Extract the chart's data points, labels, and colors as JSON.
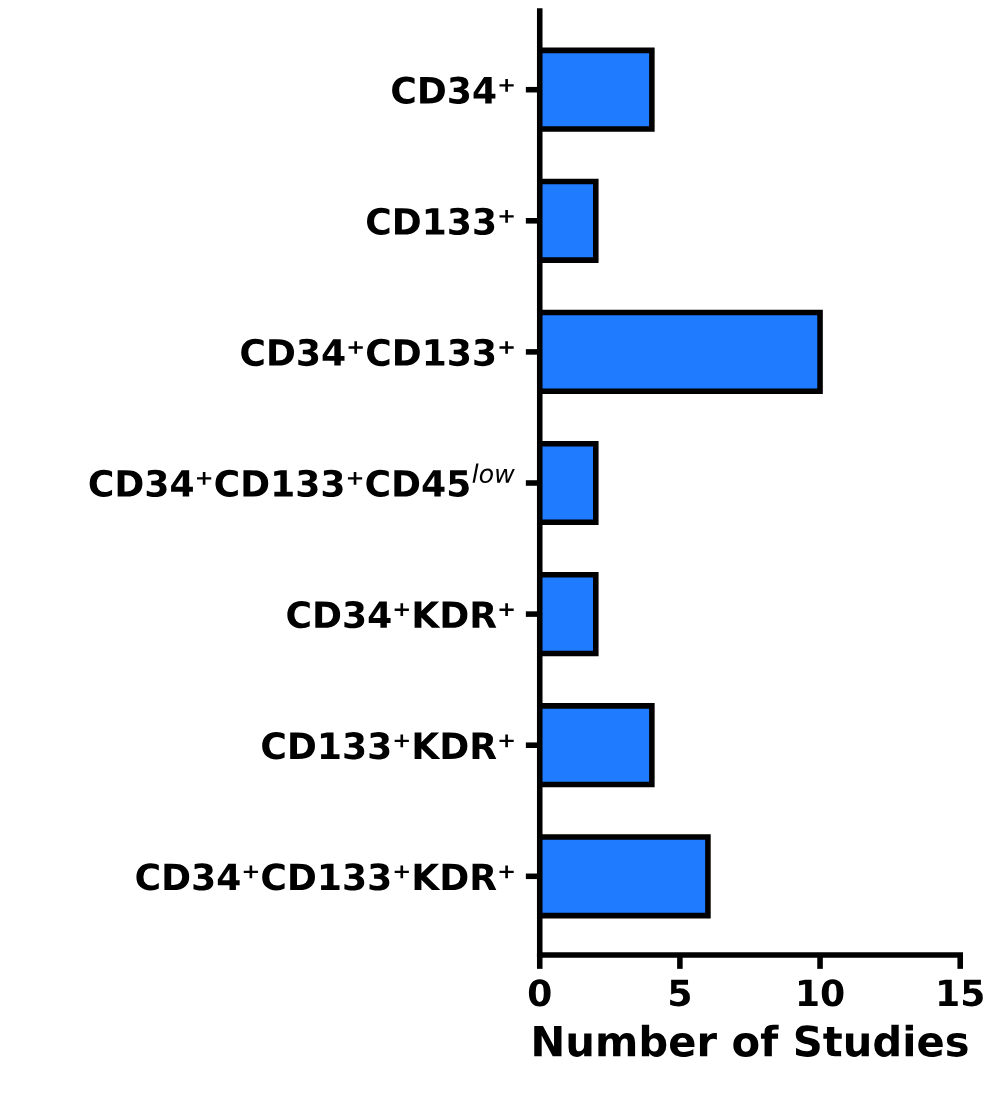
{
  "chart_data": {
    "type": "bar",
    "orientation": "horizontal",
    "xlabel": "Number of Studies",
    "categories": [
      "CD34⁺",
      "CD133⁺",
      "CD34⁺CD133⁺",
      "CD34⁺CD133⁺CD45$^{low}$",
      "CD34⁺KDR⁺",
      "CD133⁺KDR⁺",
      "CD34⁺CD133⁺KDR⁺"
    ],
    "values": [
      4,
      2,
      10,
      2,
      2,
      4,
      6
    ],
    "color": "#1f7bff",
    "xlim": [
      0,
      15
    ],
    "xticks": [
      0,
      5,
      10,
      15
    ],
    "grid": false,
    "legend": false
  }
}
